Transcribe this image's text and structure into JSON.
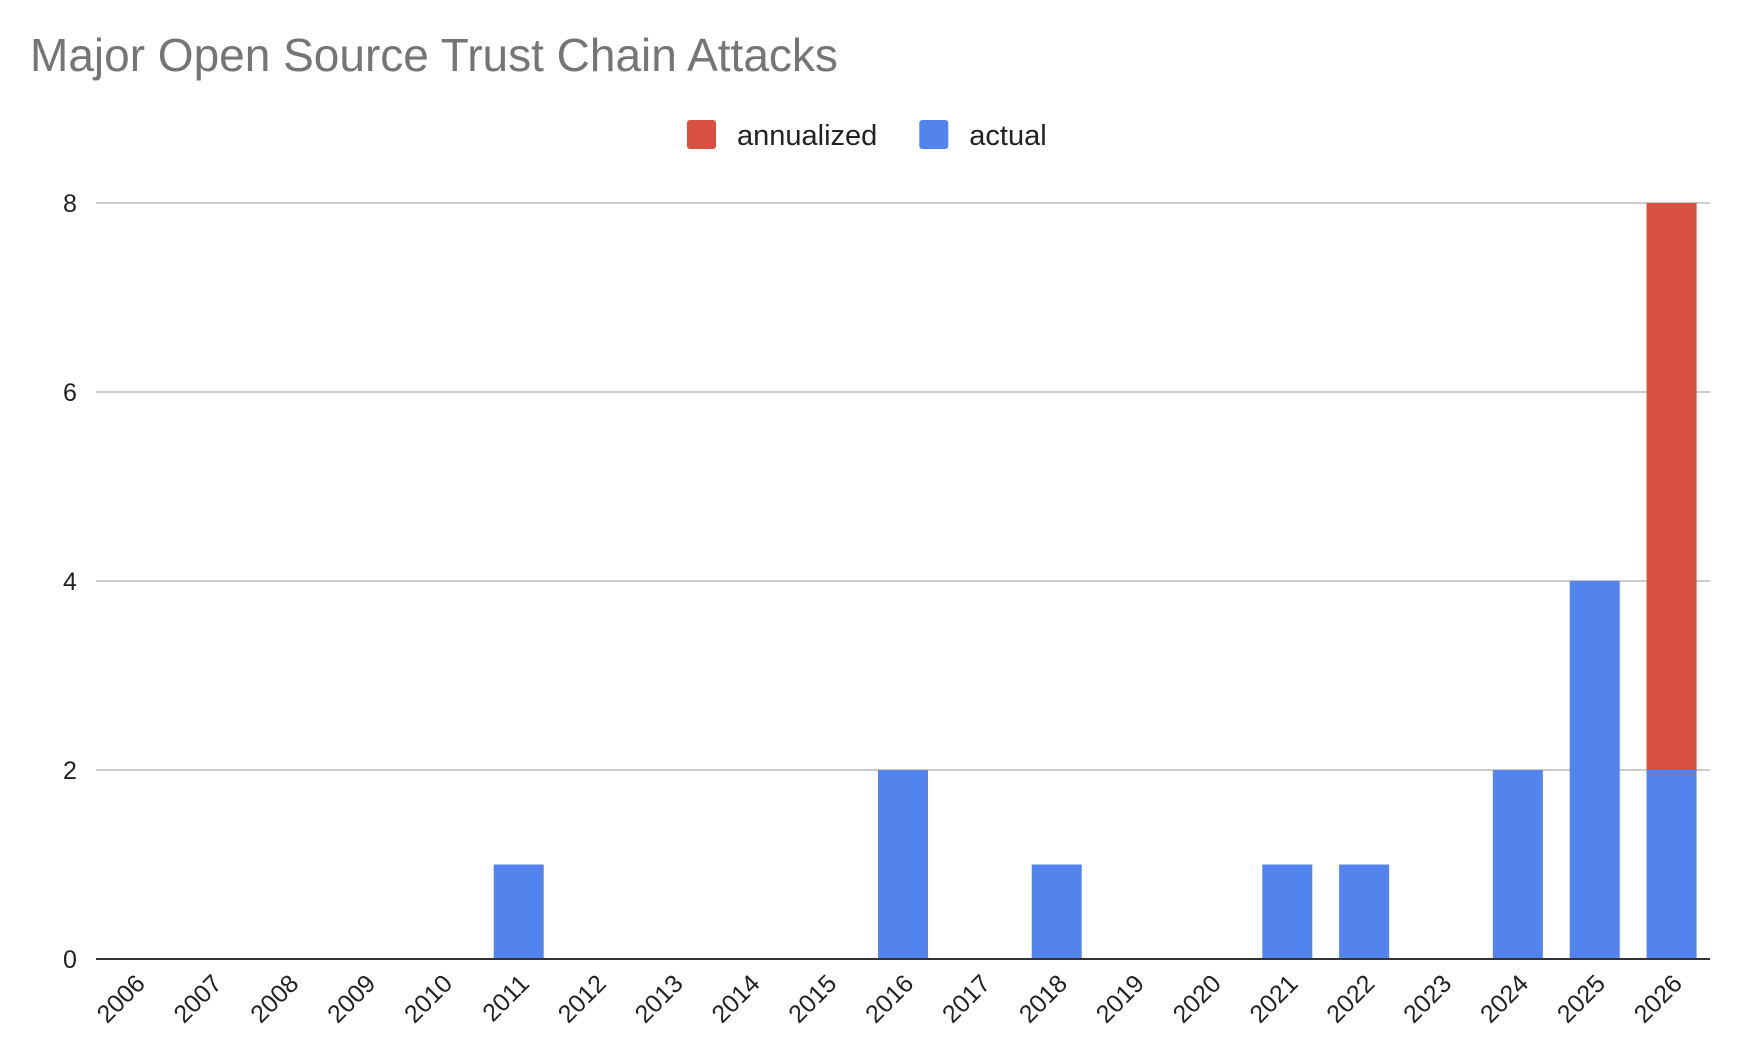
{
  "chart_data": {
    "type": "bar",
    "stacked": true,
    "title": "Major Open Source Trust Chain Attacks",
    "xlabel": "",
    "ylabel": "",
    "categories": [
      "2006",
      "2007",
      "2008",
      "2009",
      "2010",
      "2011",
      "2012",
      "2013",
      "2014",
      "2015",
      "2016",
      "2017",
      "2018",
      "2019",
      "2020",
      "2021",
      "2022",
      "2023",
      "2024",
      "2025",
      "2026"
    ],
    "series": [
      {
        "name": "actual",
        "color": "#5384ed",
        "values": [
          0,
          0,
          0,
          0,
          0,
          1,
          0,
          0,
          0,
          0,
          2,
          0,
          1,
          0,
          0,
          1,
          1,
          0,
          2,
          4,
          2
        ]
      },
      {
        "name": "annualized",
        "color": "#d85040",
        "values": [
          0,
          0,
          0,
          0,
          0,
          0,
          0,
          0,
          0,
          0,
          0,
          0,
          0,
          0,
          0,
          0,
          0,
          0,
          0,
          0,
          6
        ]
      }
    ],
    "legend": {
      "position": "top-center",
      "order": [
        "annualized",
        "actual"
      ]
    },
    "yticks": [
      "0",
      "2",
      "4",
      "6",
      "8"
    ],
    "ylim": [
      0,
      8
    ],
    "grid": true,
    "x_tick_rotation": -45
  }
}
